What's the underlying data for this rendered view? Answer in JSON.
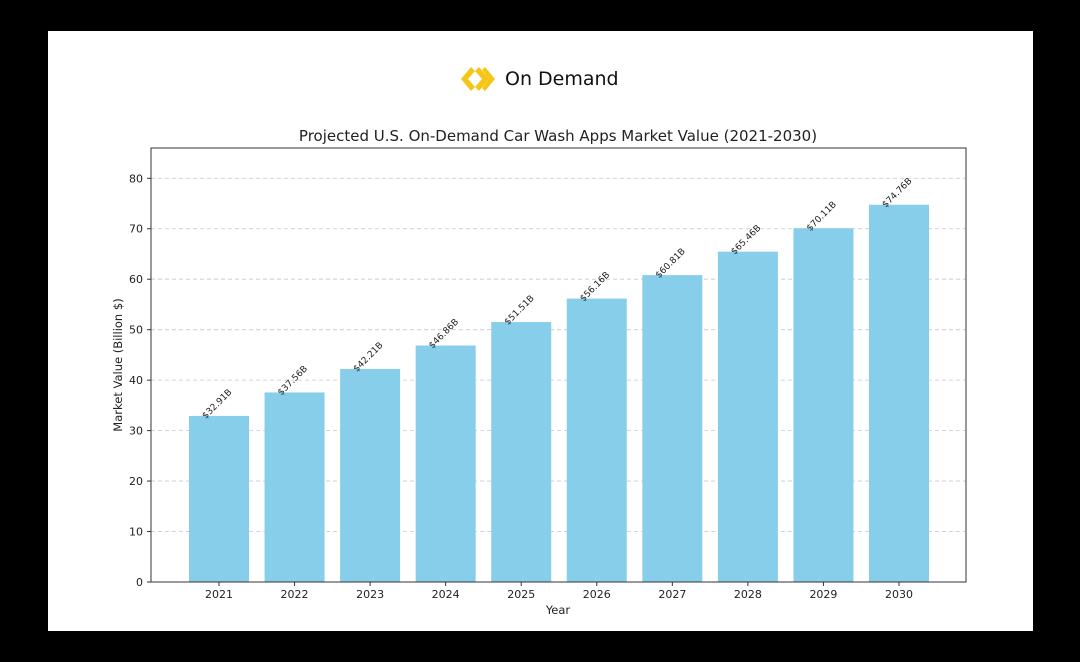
{
  "brand": {
    "name": "On Demand",
    "logo_icon": "double-chevron-diamond-icon",
    "logo_color": "#F5C518"
  },
  "chart_data": {
    "type": "bar",
    "title": "Projected U.S. On-Demand Car Wash Apps Market Value (2021-2030)",
    "xlabel": "Year",
    "ylabel": "Market Value (Billion $)",
    "categories": [
      "2021",
      "2022",
      "2023",
      "2024",
      "2025",
      "2026",
      "2027",
      "2028",
      "2029",
      "2030"
    ],
    "values": [
      32.91,
      37.56,
      42.21,
      46.86,
      51.51,
      56.16,
      60.81,
      65.46,
      70.11,
      74.76
    ],
    "data_labels": [
      "$32.91B",
      "$37.56B",
      "$42.21B",
      "$46.86B",
      "$51.51B",
      "$56.16B",
      "$60.81B",
      "$65.46B",
      "$70.11B",
      "$74.76B"
    ],
    "yticks": [
      0,
      10,
      20,
      30,
      40,
      50,
      60,
      70,
      80
    ],
    "ylim": [
      0,
      86
    ],
    "grid": "y-dashed",
    "bar_color": "#87CEEB"
  }
}
